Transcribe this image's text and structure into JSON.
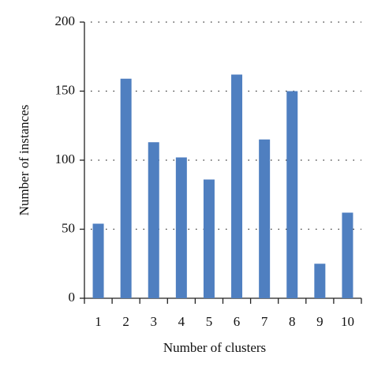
{
  "chart_data": {
    "type": "bar",
    "x_label": "Number of clusters",
    "y_label": "Number of instances",
    "categories": [
      "1",
      "2",
      "3",
      "4",
      "5",
      "6",
      "7",
      "8",
      "9",
      "10"
    ],
    "values": [
      54,
      159,
      113,
      102,
      86,
      162,
      115,
      150,
      25,
      62
    ],
    "color": "#4f7fc0",
    "ylim": [
      0,
      200
    ],
    "yticks": [
      0,
      50,
      100,
      150,
      200
    ],
    "grid": true
  }
}
